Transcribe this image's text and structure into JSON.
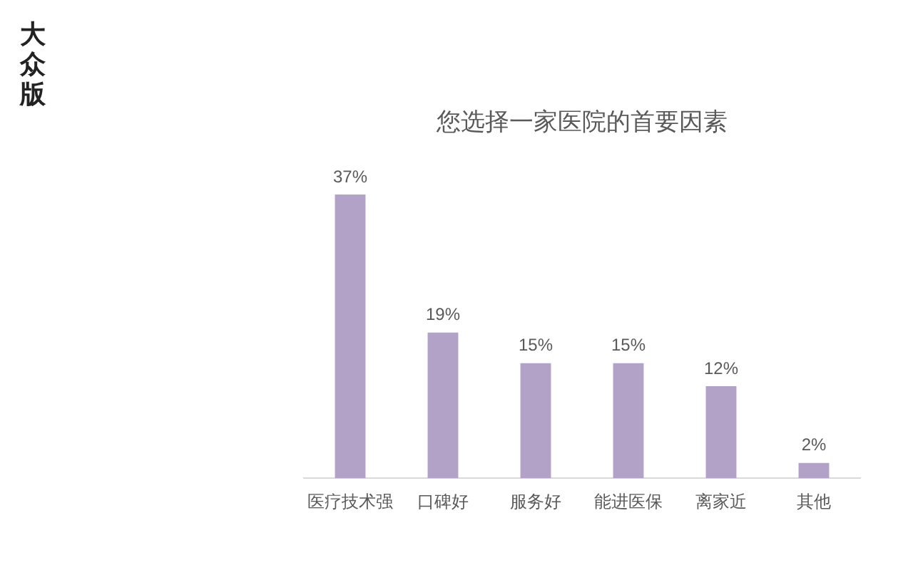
{
  "chart_data": {
    "type": "bar",
    "title": "您选择一家医院的首要因素",
    "categories": [
      "医疗技术强",
      "口碑好",
      "服务好",
      "能进医保",
      "离家近",
      "其他"
    ],
    "values": [
      37,
      19,
      15,
      15,
      12,
      2
    ],
    "value_labels": [
      "37%",
      "19%",
      "15%",
      "15%",
      "12%",
      "2%"
    ],
    "color": "#b3a2c8",
    "annotations": [
      "大众版"
    ],
    "grid": false,
    "legend": false
  }
}
